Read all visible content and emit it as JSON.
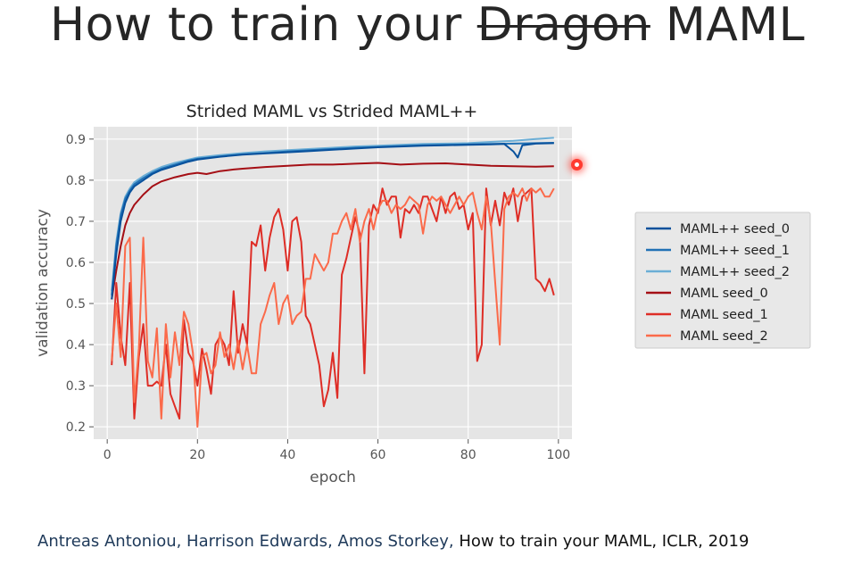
{
  "slide": {
    "title_before": "How to train your",
    "title_struck": "Dragon",
    "title_after": "MAML",
    "citation_authors": "Antreas Antoniou, Harrison Edwards, Amos Storkey,",
    "citation_rest": "How to train your MAML, ICLR, 2019"
  },
  "chart_data": {
    "type": "line",
    "title": "Strided MAML vs Strided MAML++",
    "xlabel": "epoch",
    "ylabel": "validation accuracy",
    "xlim": [
      -3,
      103
    ],
    "ylim": [
      0.17,
      0.93
    ],
    "xticks": [
      0,
      20,
      40,
      60,
      80,
      100
    ],
    "yticks": [
      0.2,
      0.3,
      0.4,
      0.5,
      0.6,
      0.7,
      0.8,
      0.9
    ],
    "ytick_labels": [
      "0.2",
      "0.3",
      "0.4",
      "0.5",
      "0.6",
      "0.7",
      "0.8",
      "0.9"
    ],
    "grid": true,
    "legend_position": "right, outside plot",
    "background": "#e5e5e5",
    "series": [
      {
        "name": "MAML++ seed_0",
        "color": "#08519c",
        "points": [
          [
            1,
            0.51
          ],
          [
            2,
            0.62
          ],
          [
            3,
            0.7
          ],
          [
            4,
            0.745
          ],
          [
            5,
            0.77
          ],
          [
            6,
            0.785
          ],
          [
            8,
            0.8
          ],
          [
            10,
            0.815
          ],
          [
            12,
            0.825
          ],
          [
            15,
            0.835
          ],
          [
            18,
            0.845
          ],
          [
            20,
            0.85
          ],
          [
            25,
            0.857
          ],
          [
            30,
            0.862
          ],
          [
            35,
            0.865
          ],
          [
            40,
            0.868
          ],
          [
            45,
            0.871
          ],
          [
            50,
            0.874
          ],
          [
            55,
            0.877
          ],
          [
            60,
            0.88
          ],
          [
            65,
            0.882
          ],
          [
            70,
            0.884
          ],
          [
            75,
            0.885
          ],
          [
            80,
            0.886
          ],
          [
            85,
            0.887
          ],
          [
            88,
            0.888
          ],
          [
            90,
            0.87
          ],
          [
            91,
            0.855
          ],
          [
            92,
            0.885
          ],
          [
            95,
            0.889
          ],
          [
            99,
            0.89
          ]
        ]
      },
      {
        "name": "MAML++ seed_1",
        "color": "#2171b5",
        "points": [
          [
            1,
            0.52
          ],
          [
            2,
            0.64
          ],
          [
            3,
            0.715
          ],
          [
            4,
            0.755
          ],
          [
            5,
            0.775
          ],
          [
            6,
            0.79
          ],
          [
            8,
            0.805
          ],
          [
            10,
            0.818
          ],
          [
            12,
            0.828
          ],
          [
            15,
            0.838
          ],
          [
            18,
            0.848
          ],
          [
            20,
            0.852
          ],
          [
            25,
            0.858
          ],
          [
            30,
            0.863
          ],
          [
            35,
            0.866
          ],
          [
            40,
            0.87
          ],
          [
            45,
            0.873
          ],
          [
            50,
            0.876
          ],
          [
            55,
            0.879
          ],
          [
            60,
            0.881
          ],
          [
            65,
            0.883
          ],
          [
            70,
            0.885
          ],
          [
            75,
            0.886
          ],
          [
            80,
            0.887
          ],
          [
            85,
            0.888
          ],
          [
            90,
            0.889
          ],
          [
            95,
            0.89
          ],
          [
            99,
            0.891
          ]
        ]
      },
      {
        "name": "MAML++ seed_2",
        "color": "#6baed6",
        "points": [
          [
            1,
            0.53
          ],
          [
            2,
            0.65
          ],
          [
            3,
            0.72
          ],
          [
            4,
            0.76
          ],
          [
            5,
            0.78
          ],
          [
            6,
            0.795
          ],
          [
            8,
            0.81
          ],
          [
            10,
            0.822
          ],
          [
            12,
            0.832
          ],
          [
            15,
            0.842
          ],
          [
            18,
            0.85
          ],
          [
            20,
            0.855
          ],
          [
            25,
            0.861
          ],
          [
            30,
            0.866
          ],
          [
            35,
            0.87
          ],
          [
            40,
            0.873
          ],
          [
            45,
            0.876
          ],
          [
            50,
            0.879
          ],
          [
            55,
            0.882
          ],
          [
            60,
            0.884
          ],
          [
            65,
            0.886
          ],
          [
            70,
            0.888
          ],
          [
            75,
            0.889
          ],
          [
            80,
            0.89
          ],
          [
            85,
            0.893
          ],
          [
            90,
            0.896
          ],
          [
            95,
            0.9
          ],
          [
            99,
            0.903
          ]
        ]
      },
      {
        "name": "MAML seed_0",
        "color": "#a50f15",
        "points": [
          [
            1,
            0.51
          ],
          [
            2,
            0.58
          ],
          [
            3,
            0.64
          ],
          [
            4,
            0.69
          ],
          [
            5,
            0.72
          ],
          [
            6,
            0.74
          ],
          [
            8,
            0.765
          ],
          [
            10,
            0.785
          ],
          [
            12,
            0.797
          ],
          [
            15,
            0.807
          ],
          [
            18,
            0.815
          ],
          [
            20,
            0.818
          ],
          [
            22,
            0.815
          ],
          [
            25,
            0.822
          ],
          [
            28,
            0.826
          ],
          [
            30,
            0.828
          ],
          [
            35,
            0.832
          ],
          [
            40,
            0.835
          ],
          [
            45,
            0.838
          ],
          [
            50,
            0.838
          ],
          [
            55,
            0.84
          ],
          [
            60,
            0.842
          ],
          [
            65,
            0.838
          ],
          [
            70,
            0.84
          ],
          [
            75,
            0.841
          ],
          [
            80,
            0.838
          ],
          [
            85,
            0.835
          ],
          [
            90,
            0.834
          ],
          [
            95,
            0.833
          ],
          [
            99,
            0.834
          ]
        ]
      },
      {
        "name": "MAML seed_1",
        "color": "#de2d26",
        "points": [
          [
            1,
            0.35
          ],
          [
            2,
            0.55
          ],
          [
            3,
            0.42
          ],
          [
            4,
            0.35
          ],
          [
            5,
            0.55
          ],
          [
            6,
            0.22
          ],
          [
            7,
            0.37
          ],
          [
            8,
            0.45
          ],
          [
            9,
            0.3
          ],
          [
            10,
            0.3
          ],
          [
            11,
            0.31
          ],
          [
            12,
            0.3
          ],
          [
            13,
            0.4
          ],
          [
            14,
            0.28
          ],
          [
            15,
            0.25
          ],
          [
            16,
            0.22
          ],
          [
            17,
            0.46
          ],
          [
            18,
            0.38
          ],
          [
            19,
            0.36
          ],
          [
            20,
            0.3
          ],
          [
            21,
            0.39
          ],
          [
            22,
            0.34
          ],
          [
            23,
            0.28
          ],
          [
            24,
            0.4
          ],
          [
            25,
            0.42
          ],
          [
            26,
            0.4
          ],
          [
            27,
            0.35
          ],
          [
            28,
            0.53
          ],
          [
            29,
            0.38
          ],
          [
            30,
            0.45
          ],
          [
            31,
            0.4
          ],
          [
            32,
            0.65
          ],
          [
            33,
            0.64
          ],
          [
            34,
            0.69
          ],
          [
            35,
            0.58
          ],
          [
            36,
            0.66
          ],
          [
            37,
            0.71
          ],
          [
            38,
            0.73
          ],
          [
            39,
            0.68
          ],
          [
            40,
            0.58
          ],
          [
            41,
            0.7
          ],
          [
            42,
            0.71
          ],
          [
            43,
            0.65
          ],
          [
            44,
            0.47
          ],
          [
            45,
            0.45
          ],
          [
            46,
            0.4
          ],
          [
            47,
            0.35
          ],
          [
            48,
            0.25
          ],
          [
            49,
            0.29
          ],
          [
            50,
            0.38
          ],
          [
            51,
            0.27
          ],
          [
            52,
            0.57
          ],
          [
            53,
            0.61
          ],
          [
            54,
            0.66
          ],
          [
            55,
            0.71
          ],
          [
            56,
            0.67
          ],
          [
            57,
            0.33
          ],
          [
            58,
            0.69
          ],
          [
            59,
            0.74
          ],
          [
            60,
            0.72
          ],
          [
            61,
            0.78
          ],
          [
            62,
            0.74
          ],
          [
            63,
            0.76
          ],
          [
            64,
            0.76
          ],
          [
            65,
            0.66
          ],
          [
            66,
            0.73
          ],
          [
            67,
            0.72
          ],
          [
            68,
            0.74
          ],
          [
            69,
            0.72
          ],
          [
            70,
            0.76
          ],
          [
            71,
            0.76
          ],
          [
            72,
            0.73
          ],
          [
            73,
            0.7
          ],
          [
            74,
            0.76
          ],
          [
            75,
            0.72
          ],
          [
            76,
            0.76
          ],
          [
            77,
            0.77
          ],
          [
            78,
            0.73
          ],
          [
            79,
            0.74
          ],
          [
            80,
            0.68
          ],
          [
            81,
            0.72
          ],
          [
            82,
            0.36
          ],
          [
            83,
            0.4
          ],
          [
            84,
            0.78
          ],
          [
            85,
            0.69
          ],
          [
            86,
            0.75
          ],
          [
            87,
            0.69
          ],
          [
            88,
            0.77
          ],
          [
            89,
            0.74
          ],
          [
            90,
            0.78
          ],
          [
            91,
            0.7
          ],
          [
            92,
            0.76
          ],
          [
            93,
            0.77
          ],
          [
            94,
            0.78
          ],
          [
            95,
            0.56
          ],
          [
            96,
            0.55
          ],
          [
            97,
            0.53
          ],
          [
            98,
            0.56
          ],
          [
            99,
            0.52
          ]
        ]
      },
      {
        "name": "MAML seed_2",
        "color": "#fb6a4a",
        "points": [
          [
            1,
            0.36
          ],
          [
            2,
            0.5
          ],
          [
            3,
            0.37
          ],
          [
            4,
            0.64
          ],
          [
            5,
            0.66
          ],
          [
            6,
            0.26
          ],
          [
            7,
            0.39
          ],
          [
            8,
            0.66
          ],
          [
            9,
            0.36
          ],
          [
            10,
            0.32
          ],
          [
            11,
            0.44
          ],
          [
            12,
            0.22
          ],
          [
            13,
            0.45
          ],
          [
            14,
            0.32
          ],
          [
            15,
            0.43
          ],
          [
            16,
            0.35
          ],
          [
            17,
            0.48
          ],
          [
            18,
            0.45
          ],
          [
            19,
            0.38
          ],
          [
            20,
            0.2
          ],
          [
            21,
            0.37
          ],
          [
            22,
            0.38
          ],
          [
            23,
            0.33
          ],
          [
            24,
            0.35
          ],
          [
            25,
            0.43
          ],
          [
            26,
            0.37
          ],
          [
            27,
            0.4
          ],
          [
            28,
            0.34
          ],
          [
            29,
            0.41
          ],
          [
            30,
            0.34
          ],
          [
            31,
            0.4
          ],
          [
            32,
            0.33
          ],
          [
            33,
            0.33
          ],
          [
            34,
            0.45
          ],
          [
            35,
            0.48
          ],
          [
            36,
            0.52
          ],
          [
            37,
            0.55
          ],
          [
            38,
            0.45
          ],
          [
            39,
            0.5
          ],
          [
            40,
            0.52
          ],
          [
            41,
            0.45
          ],
          [
            42,
            0.47
          ],
          [
            43,
            0.48
          ],
          [
            44,
            0.56
          ],
          [
            45,
            0.56
          ],
          [
            46,
            0.62
          ],
          [
            47,
            0.6
          ],
          [
            48,
            0.58
          ],
          [
            49,
            0.6
          ],
          [
            50,
            0.67
          ],
          [
            51,
            0.67
          ],
          [
            52,
            0.7
          ],
          [
            53,
            0.72
          ],
          [
            54,
            0.68
          ],
          [
            55,
            0.73
          ],
          [
            56,
            0.65
          ],
          [
            57,
            0.7
          ],
          [
            58,
            0.73
          ],
          [
            59,
            0.68
          ],
          [
            60,
            0.73
          ],
          [
            61,
            0.75
          ],
          [
            62,
            0.75
          ],
          [
            63,
            0.72
          ],
          [
            64,
            0.74
          ],
          [
            65,
            0.73
          ],
          [
            66,
            0.74
          ],
          [
            67,
            0.76
          ],
          [
            68,
            0.75
          ],
          [
            69,
            0.74
          ],
          [
            70,
            0.67
          ],
          [
            71,
            0.74
          ],
          [
            72,
            0.76
          ],
          [
            73,
            0.75
          ],
          [
            74,
            0.76
          ],
          [
            75,
            0.74
          ],
          [
            76,
            0.72
          ],
          [
            77,
            0.74
          ],
          [
            78,
            0.76
          ],
          [
            79,
            0.74
          ],
          [
            80,
            0.76
          ],
          [
            81,
            0.77
          ],
          [
            82,
            0.72
          ],
          [
            83,
            0.68
          ],
          [
            84,
            0.76
          ],
          [
            85,
            0.7
          ],
          [
            86,
            0.55
          ],
          [
            87,
            0.4
          ],
          [
            88,
            0.73
          ],
          [
            89,
            0.76
          ],
          [
            90,
            0.77
          ],
          [
            91,
            0.76
          ],
          [
            92,
            0.78
          ],
          [
            93,
            0.75
          ],
          [
            94,
            0.78
          ],
          [
            95,
            0.77
          ],
          [
            96,
            0.78
          ],
          [
            97,
            0.76
          ],
          [
            98,
            0.76
          ],
          [
            99,
            0.78
          ]
        ]
      }
    ]
  }
}
